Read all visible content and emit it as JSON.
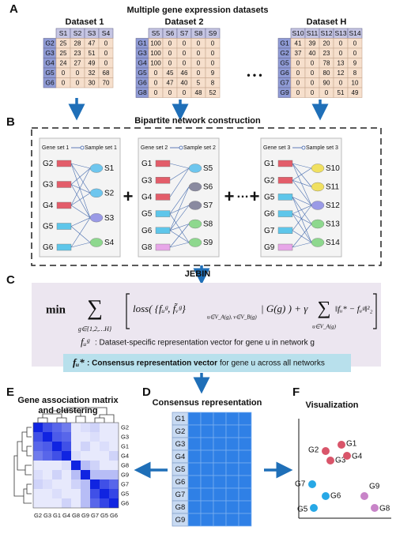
{
  "panel_labels": [
    "A",
    "B",
    "C",
    "D",
    "E",
    "F"
  ],
  "datasets": {
    "title": "Multiple gene expression datasets",
    "ellipsis": "• • •",
    "tables": [
      {
        "name": "Dataset 1",
        "columns": [
          "S1",
          "S2",
          "S3",
          "S4"
        ],
        "rows": [
          {
            "gene": "G2",
            "values": [
              25,
              28,
              47,
              0
            ]
          },
          {
            "gene": "G3",
            "values": [
              25,
              23,
              51,
              0
            ]
          },
          {
            "gene": "G4",
            "values": [
              24,
              27,
              49,
              0
            ]
          },
          {
            "gene": "G5",
            "values": [
              0,
              0,
              32,
              68
            ]
          },
          {
            "gene": "G6",
            "values": [
              0,
              0,
              30,
              70
            ]
          }
        ]
      },
      {
        "name": "Dataset 2",
        "columns": [
          "S5",
          "S6",
          "S7",
          "S8",
          "S9"
        ],
        "rows": [
          {
            "gene": "G1",
            "values": [
              100,
              0,
              0,
              0,
              0
            ]
          },
          {
            "gene": "G3",
            "values": [
              100,
              0,
              0,
              0,
              0
            ]
          },
          {
            "gene": "G4",
            "values": [
              100,
              0,
              0,
              0,
              0
            ]
          },
          {
            "gene": "G5",
            "values": [
              0,
              45,
              46,
              0,
              9
            ]
          },
          {
            "gene": "G6",
            "values": [
              0,
              47,
              40,
              5,
              8
            ]
          },
          {
            "gene": "G8",
            "values": [
              0,
              0,
              0,
              48,
              52
            ]
          }
        ]
      },
      {
        "name": "Dataset H",
        "columns": [
          "S10",
          "S11",
          "S12",
          "S13",
          "S14"
        ],
        "rows": [
          {
            "gene": "G1",
            "values": [
              41,
              39,
              20,
              0,
              0
            ]
          },
          {
            "gene": "G2",
            "values": [
              37,
              40,
              23,
              0,
              0
            ]
          },
          {
            "gene": "G5",
            "values": [
              0,
              0,
              78,
              13,
              9
            ]
          },
          {
            "gene": "G6",
            "values": [
              0,
              0,
              80,
              12,
              8
            ]
          },
          {
            "gene": "G7",
            "values": [
              0,
              0,
              90,
              0,
              10
            ]
          },
          {
            "gene": "G9",
            "values": [
              0,
              0,
              0,
              51,
              49
            ]
          }
        ]
      }
    ]
  },
  "networks": {
    "title": "Bipartite network construction",
    "operators": [
      "+",
      "+",
      "…",
      "+"
    ],
    "items": [
      {
        "gene_set": "Gene set 1",
        "sample_set": "Sample set 1"
      },
      {
        "gene_set": "Gene set 2",
        "sample_set": "Sample set 2"
      },
      {
        "gene_set": "Gene set 3",
        "sample_set": "Sample set 3"
      }
    ]
  },
  "jebin": {
    "title": "JEBIN",
    "formula": {
      "min": "min",
      "sum1": "∑",
      "sum1_sub": "g∈{1,2,…H}",
      "loss": "loss( {fᵤᵍ, f̃ᵥᵍ}",
      "loss_sub": "u∈V_A(g), v∈V_B(g)",
      "cond": "| G(g) ) + γ",
      "sum2": "∑",
      "sum2_sub": "u∈V_A(g)",
      "norm": "‖fᵤ* − fᵤᵍ‖²₂"
    },
    "def1": {
      "symbol": "fᵤᵍ",
      "text": ": Dataset-specific representation vector for gene u in network g"
    },
    "def2": {
      "symbol": "fᵤ*",
      "bold": ": Consensus representation vector",
      "text": " for gene u across all networks"
    }
  },
  "consensus": {
    "title": "Consensus representation",
    "genes": [
      "G1",
      "G2",
      "G3",
      "G4",
      "G5",
      "G6",
      "G7",
      "G8",
      "G9"
    ]
  },
  "heatmap": {
    "title_lines": [
      "Gene association matrix",
      "and clustering"
    ],
    "labels": [
      "G2",
      "G3",
      "G1",
      "G4",
      "G8",
      "G9",
      "G7",
      "G5",
      "G6"
    ],
    "values": [
      [
        1,
        0.8,
        0.7,
        0.6,
        0.1,
        0.15,
        0.2,
        0.1,
        0.1
      ],
      [
        0.8,
        1,
        0.75,
        0.7,
        0.1,
        0.1,
        0.15,
        0.1,
        0.1
      ],
      [
        0.7,
        0.75,
        1,
        0.8,
        0.1,
        0.2,
        0.1,
        0.15,
        0.1
      ],
      [
        0.6,
        0.7,
        0.8,
        1,
        0.15,
        0.1,
        0.1,
        0.1,
        0.2
      ],
      [
        0.1,
        0.1,
        0.1,
        0.15,
        1,
        0.3,
        0.2,
        0.1,
        0.1
      ],
      [
        0.15,
        0.1,
        0.2,
        0.1,
        0.3,
        1,
        0.3,
        0.3,
        0.3
      ],
      [
        0.2,
        0.15,
        0.1,
        0.1,
        0.2,
        0.3,
        1,
        0.8,
        0.7
      ],
      [
        0.1,
        0.1,
        0.15,
        0.1,
        0.1,
        0.3,
        0.8,
        1,
        0.85
      ],
      [
        0.1,
        0.1,
        0.1,
        0.2,
        0.1,
        0.3,
        0.7,
        0.85,
        1
      ]
    ]
  },
  "visualization": {
    "title": "Visualization",
    "points": [
      "G1",
      "G2",
      "G3",
      "G4",
      "G7",
      "G6",
      "G5",
      "G9",
      "G8"
    ]
  }
}
